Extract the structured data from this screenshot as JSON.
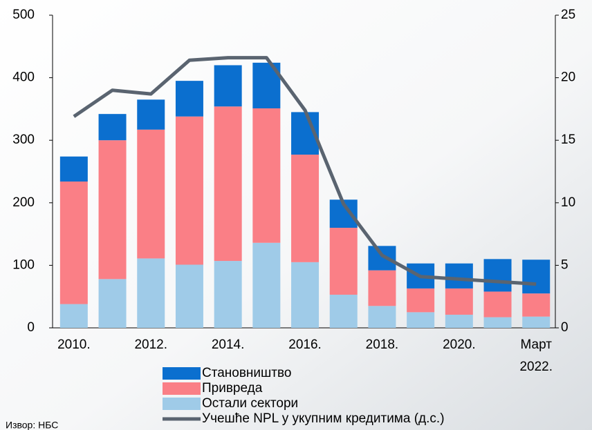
{
  "chart_data": {
    "type": "bar",
    "stacked": true,
    "categories": [
      "2010.",
      null,
      "2012.",
      null,
      "2014.",
      null,
      "2016.",
      null,
      "2018.",
      null,
      "2020.",
      null,
      "Март 2022."
    ],
    "series": [
      {
        "name": "Остали сектори",
        "color": "#9fcbe8",
        "values": [
          38,
          78,
          111,
          101,
          107,
          136,
          105,
          53,
          35,
          25,
          21,
          17,
          18
        ]
      },
      {
        "name": "Привреда",
        "color": "#fa7f86",
        "values": [
          196,
          222,
          206,
          237,
          247,
          215,
          172,
          107,
          57,
          38,
          42,
          41,
          37
        ]
      },
      {
        "name": "Становништво",
        "color": "#0b6fcf",
        "values": [
          40,
          42,
          48,
          57,
          66,
          73,
          68,
          45,
          39,
          40,
          40,
          52,
          54
        ]
      },
      {
        "name": "Учешће NPL у укупним кредитима (д.с.)",
        "color": "#5a6470",
        "type": "line",
        "axis": "y2",
        "values": [
          16.9,
          19.0,
          18.7,
          21.4,
          21.6,
          21.6,
          17.4,
          9.9,
          5.8,
          4.1,
          3.9,
          3.7,
          3.5
        ]
      }
    ],
    "ylim": [
      0,
      500
    ],
    "yticks": [
      0,
      100,
      200,
      300,
      400,
      500
    ],
    "y2lim": [
      0,
      25
    ],
    "y2ticks": [
      0,
      5,
      10,
      15,
      20,
      25
    ],
    "grid": false,
    "source": "Извор: НБС"
  }
}
